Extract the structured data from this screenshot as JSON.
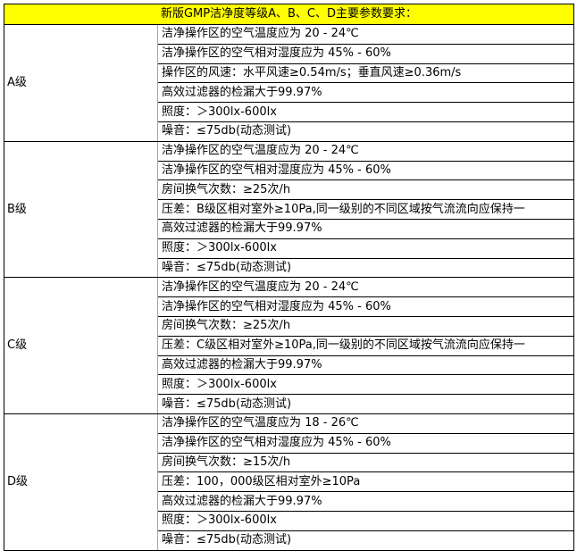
{
  "title": "新版GMP洁净度等级A、B、C、D主要参数要求：",
  "grades": [
    {
      "label": "A级",
      "items": [
        "洁净操作区的空气温度应为 20 - 24℃",
        "洁净操作区的空气相对湿度应为 45% - 60%",
        "操作区的风速：水平风速≥0.54m/s；垂直风速≥0.36m/s",
        "高效过滤器的检漏大于99.97%",
        "照度：＞300lx-600lx",
        "噪音：≤75db(动态测试)"
      ]
    },
    {
      "label": "B级",
      "items": [
        "洁净操作区的空气温度应为 20 - 24℃",
        "洁净操作区的空气相对湿度应为 45% - 60%",
        "房间换气次数：≥25次/h",
        "压差：B级区相对室外≥10Pa,同一级别的不同区域按气流流向应保持一",
        "高效过滤器的检漏大于99.97%",
        "照度：＞300lx-600lx",
        "噪音：≤75db(动态测试)"
      ]
    },
    {
      "label": "C级",
      "items": [
        "洁净操作区的空气温度应为 20 - 24℃",
        "洁净操作区的空气相对湿度应为 45% - 60%",
        "房间换气次数：≥25次/h",
        "压差：C级区相对室外≥10Pa,同一级别的不同区域按气流流向应保持一",
        "高效过滤器的检漏大于99.97%",
        "照度：＞300lx-600lx",
        "噪音：≤75db(动态测试)"
      ]
    },
    {
      "label": "D级",
      "items": [
        "洁净操作区的空气温度应为 18 - 26℃",
        "洁净操作区的空气相对湿度应为 45% - 60%",
        "房间换气次数：≥15次/h",
        "压差：100，000级区相对室外≥10Pa",
        "高效过滤器的检漏大于99.97%",
        "照度：＞300lx-600lx",
        "噪音：≤75db(动态测试)"
      ]
    }
  ],
  "colors": {
    "header_bg": "#ffff00"
  }
}
